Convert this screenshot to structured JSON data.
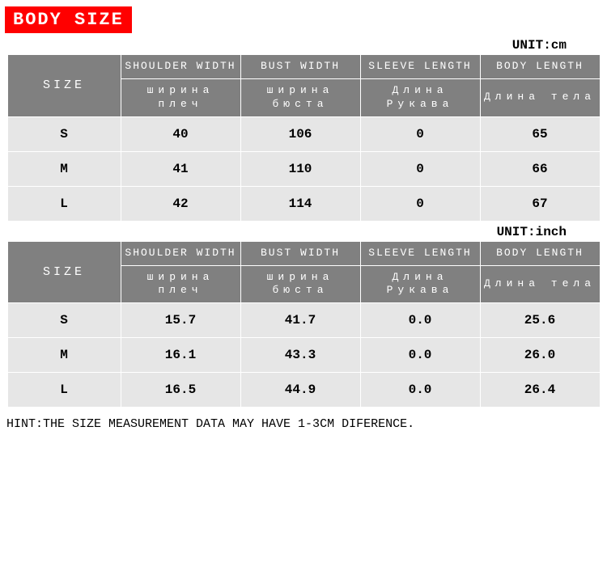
{
  "title": "BODY SIZE",
  "hint": "HINT:THE SIZE MEASUREMENT DATA MAY HAVE 1-3CM DIFERENCE.",
  "colors": {
    "title_bg": "#ff0000",
    "title_fg": "#ffffff",
    "header_bg": "#808080",
    "header_fg": "#ffffff",
    "row_bg": "#e6e6e6",
    "row_fg": "#000000",
    "border": "#ffffff",
    "page_bg": "#ffffff"
  },
  "columns": {
    "size": {
      "label": "SIZE"
    },
    "shoulder": {
      "en": "SHOULDER WIDTH",
      "ru": "ширина плеч"
    },
    "bust": {
      "en": "BUST WIDTH",
      "ru": "ширина бюста"
    },
    "sleeve": {
      "en": "SLEEVE LENGTH",
      "ru": "Длина Рукава"
    },
    "body": {
      "en": "BODY LENGTH",
      "ru": "Длина тела"
    }
  },
  "table_cm": {
    "unit_label": "UNIT:cm",
    "rows": [
      {
        "size": "S",
        "shoulder": "40",
        "bust": "106",
        "sleeve": "0",
        "body": "65"
      },
      {
        "size": "M",
        "shoulder": "41",
        "bust": "110",
        "sleeve": "0",
        "body": "66"
      },
      {
        "size": "L",
        "shoulder": "42",
        "bust": "114",
        "sleeve": "0",
        "body": "67"
      }
    ]
  },
  "table_inch": {
    "unit_label": "UNIT:inch",
    "rows": [
      {
        "size": "S",
        "shoulder": "15.7",
        "bust": "41.7",
        "sleeve": "0.0",
        "body": "25.6"
      },
      {
        "size": "M",
        "shoulder": "16.1",
        "bust": "43.3",
        "sleeve": "0.0",
        "body": "26.0"
      },
      {
        "size": "L",
        "shoulder": "16.5",
        "bust": "44.9",
        "sleeve": "0.0",
        "body": "26.4"
      }
    ]
  }
}
